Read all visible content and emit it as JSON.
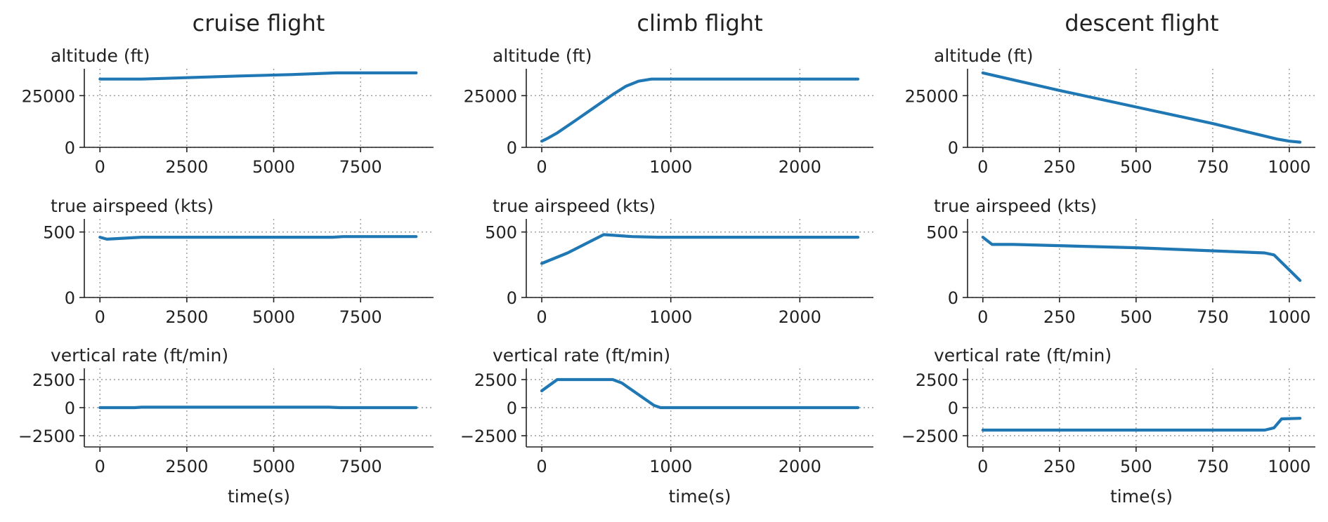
{
  "colors": {
    "line": "#1f77b4",
    "axis": "#222222",
    "grid": "#9a9a9a"
  },
  "chart_data": [
    {
      "type": "line",
      "title": "cruise flight",
      "panels": [
        {
          "ylabel": "altitude (ft)",
          "xlim": [
            -450,
            9600
          ],
          "ylim": [
            0,
            38000
          ],
          "xticks": [
            0,
            2500,
            5000,
            7500
          ],
          "xtick_labels": [
            "0",
            "2500",
            "5000",
            "7500"
          ],
          "yticks": [
            0,
            25000
          ],
          "ytick_labels": [
            "0",
            "25000"
          ],
          "grid": true,
          "xlabel": "",
          "series": [
            {
              "x": [
                0,
                1200,
                2500,
                4000,
                5500,
                6800,
                7500,
                9100
              ],
              "y": [
                33000,
                33000,
                33700,
                34500,
                35200,
                36000,
                36000,
                36000
              ]
            }
          ]
        },
        {
          "ylabel": "true airspeed (kts)",
          "xlim": [
            -450,
            9600
          ],
          "ylim": [
            0,
            600
          ],
          "xticks": [
            0,
            2500,
            5000,
            7500
          ],
          "xtick_labels": [
            "0",
            "2500",
            "5000",
            "7500"
          ],
          "yticks": [
            0,
            500
          ],
          "ytick_labels": [
            "0",
            "500"
          ],
          "grid": true,
          "xlabel": "",
          "series": [
            {
              "x": [
                0,
                200,
                1200,
                3000,
                6700,
                7000,
                9100
              ],
              "y": [
                460,
                445,
                460,
                460,
                460,
                465,
                465
              ]
            }
          ]
        },
        {
          "ylabel": "vertical rate (ft/min)",
          "xlim": [
            -450,
            9600
          ],
          "ylim": [
            -3500,
            3500
          ],
          "xticks": [
            0,
            2500,
            5000,
            7500
          ],
          "xtick_labels": [
            "0",
            "2500",
            "5000",
            "7500"
          ],
          "yticks": [
            -2500,
            0,
            2500
          ],
          "ytick_labels": [
            "−2500",
            "0",
            "2500"
          ],
          "grid": true,
          "xlabel": "time(s)",
          "series": [
            {
              "x": [
                0,
                1000,
                1200,
                6600,
                6900,
                9100
              ],
              "y": [
                0,
                0,
                40,
                40,
                0,
                0
              ]
            }
          ]
        }
      ]
    },
    {
      "type": "line",
      "title": "climb flight",
      "panels": [
        {
          "ylabel": "altitude (ft)",
          "xlim": [
            -120,
            2570
          ],
          "ylim": [
            0,
            38000
          ],
          "xticks": [
            0,
            1000,
            2000
          ],
          "xtick_labels": [
            "0",
            "1000",
            "2000"
          ],
          "yticks": [
            0,
            25000
          ],
          "ytick_labels": [
            "0",
            "25000"
          ],
          "grid": true,
          "xlabel": "",
          "series": [
            {
              "x": [
                0,
                50,
                120,
                250,
                400,
                550,
                650,
                750,
                850,
                950,
                2450
              ],
              "y": [
                3000,
                4500,
                7000,
                12500,
                19000,
                25500,
                29500,
                32000,
                33000,
                33000,
                33000
              ]
            }
          ]
        },
        {
          "ylabel": "true airspeed (kts)",
          "xlim": [
            -120,
            2570
          ],
          "ylim": [
            0,
            600
          ],
          "xticks": [
            0,
            1000,
            2000
          ],
          "xtick_labels": [
            "0",
            "1000",
            "2000"
          ],
          "yticks": [
            0,
            500
          ],
          "ytick_labels": [
            "0",
            "500"
          ],
          "grid": true,
          "xlabel": "",
          "series": [
            {
              "x": [
                0,
                200,
                480,
                700,
                900,
                2450
              ],
              "y": [
                260,
                340,
                480,
                465,
                460,
                460
              ]
            }
          ]
        },
        {
          "ylabel": "vertical rate (ft/min)",
          "xlim": [
            -120,
            2570
          ],
          "ylim": [
            -3500,
            3500
          ],
          "xticks": [
            0,
            1000,
            2000
          ],
          "xtick_labels": [
            "0",
            "1000",
            "2000"
          ],
          "yticks": [
            -2500,
            0,
            2500
          ],
          "ytick_labels": [
            "−2500",
            "0",
            "2500"
          ],
          "grid": true,
          "xlabel": "time(s)",
          "series": [
            {
              "x": [
                0,
                120,
                550,
                620,
                870,
                920,
                2450
              ],
              "y": [
                1500,
                2500,
                2500,
                2200,
                200,
                0,
                0
              ]
            }
          ]
        }
      ]
    },
    {
      "type": "line",
      "title": "descent flight",
      "panels": [
        {
          "ylabel": "altitude (ft)",
          "xlim": [
            -50,
            1085
          ],
          "ylim": [
            0,
            38000
          ],
          "xticks": [
            0,
            250,
            500,
            750,
            1000
          ],
          "xtick_labels": [
            "0",
            "250",
            "500",
            "750",
            "1000"
          ],
          "yticks": [
            0,
            25000
          ],
          "ytick_labels": [
            "0",
            "25000"
          ],
          "grid": true,
          "xlabel": "",
          "series": [
            {
              "x": [
                0,
                250,
                500,
                750,
                960,
                1000,
                1035
              ],
              "y": [
                36000,
                27500,
                19500,
                11500,
                4000,
                3000,
                2500
              ]
            }
          ]
        },
        {
          "ylabel": "true airspeed (kts)",
          "xlim": [
            -50,
            1085
          ],
          "ylim": [
            0,
            600
          ],
          "xticks": [
            0,
            250,
            500,
            750,
            1000
          ],
          "xtick_labels": [
            "0",
            "250",
            "500",
            "750",
            "1000"
          ],
          "yticks": [
            0,
            500
          ],
          "ytick_labels": [
            "0",
            "500"
          ],
          "grid": true,
          "xlabel": "",
          "series": [
            {
              "x": [
                0,
                30,
                100,
                500,
                920,
                950,
                1035
              ],
              "y": [
                460,
                405,
                405,
                380,
                340,
                325,
                130
              ]
            }
          ]
        },
        {
          "ylabel": "vertical rate (ft/min)",
          "xlim": [
            -50,
            1085
          ],
          "ylim": [
            -3500,
            3500
          ],
          "xticks": [
            0,
            250,
            500,
            750,
            1000
          ],
          "xtick_labels": [
            "0",
            "250",
            "500",
            "750",
            "1000"
          ],
          "yticks": [
            -2500,
            0,
            2500
          ],
          "ytick_labels": [
            "−2500",
            "0",
            "2500"
          ],
          "grid": true,
          "xlabel": "time(s)",
          "series": [
            {
              "x": [
                0,
                920,
                950,
                975,
                1035
              ],
              "y": [
                -2000,
                -2000,
                -1800,
                -1000,
                -950
              ]
            }
          ]
        }
      ]
    }
  ]
}
